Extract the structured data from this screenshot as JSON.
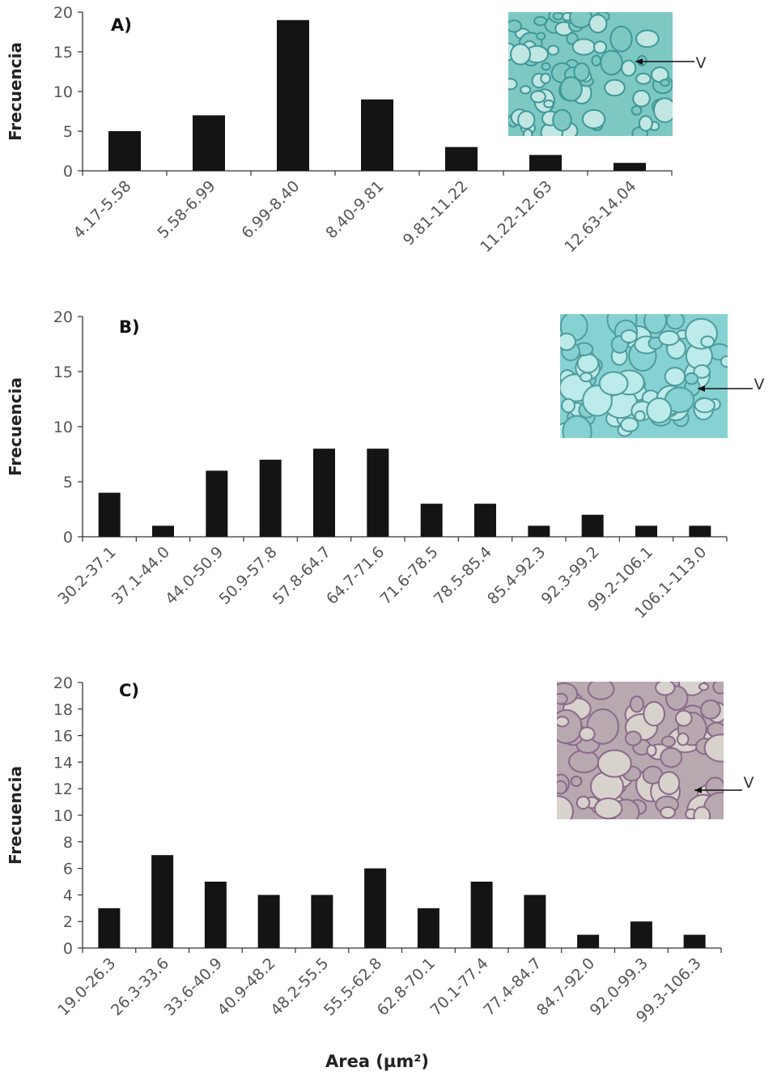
{
  "colors": {
    "bar": "#141414",
    "axis": "#333333",
    "text": "#555555"
  },
  "xlabel": "Area (µm²)",
  "chart_data": [
    {
      "type": "bar",
      "panel": "A)",
      "ylabel": "Frecuencia",
      "ylim": [
        0,
        20
      ],
      "yticks": [
        "0",
        "5",
        "10",
        "15",
        "20"
      ],
      "categories": [
        "4.17-5.58",
        "5.58-6.99",
        "6.99-8.40",
        "8.40-9.81",
        "9.81-11.22",
        "11.22-12.63",
        "12.63-14.04"
      ],
      "values": [
        5,
        7,
        19,
        9,
        3,
        2,
        1
      ],
      "inset": {
        "label": "V",
        "icon": "micrograph-teal",
        "colors": [
          "#3e9898",
          "#7ec8c4",
          "#c2e6e2"
        ]
      }
    },
    {
      "type": "bar",
      "panel": "B)",
      "ylabel": "Frecuencia",
      "ylim": [
        0,
        20
      ],
      "yticks": [
        "0",
        "5",
        "10",
        "15",
        "20"
      ],
      "categories": [
        "30.2-37.1",
        "37.1-44.0",
        "44.0-50.9",
        "50.9-57.8",
        "57.8-64.7",
        "64.7-71.6",
        "71.6-78.5",
        "78.5-85.4",
        "85.4-92.3",
        "92.3-99.2",
        "99.2-106.1",
        "106.1-113.0"
      ],
      "values": [
        4,
        1,
        6,
        7,
        8,
        8,
        3,
        3,
        1,
        2,
        1,
        1
      ],
      "inset": {
        "label": "V",
        "icon": "micrograph-cyan",
        "colors": [
          "#4f9c9c",
          "#86d2d2",
          "#bdeaea"
        ]
      }
    },
    {
      "type": "bar",
      "panel": "C)",
      "ylabel": "Frecuencia",
      "ylim": [
        0,
        20
      ],
      "yticks": [
        "0",
        "2",
        "4",
        "6",
        "8",
        "10",
        "12",
        "14",
        "16",
        "18",
        "20"
      ],
      "categories": [
        "19.0-26.3",
        "26.3-33.6",
        "33.6-40.9",
        "40.9-48.2",
        "48.2-55.5",
        "55.5-62.8",
        "62.8-70.1",
        "70.1-77.4",
        "77.4-84.7",
        "84.7-92.0",
        "92.0-99.3",
        "99.3-106.3"
      ],
      "values": [
        3,
        7,
        5,
        4,
        4,
        6,
        3,
        5,
        4,
        1,
        2,
        1
      ],
      "inset": {
        "label": "V",
        "icon": "micrograph-purple",
        "colors": [
          "#8a6a8a",
          "#b8a8b0",
          "#d8d2cc"
        ]
      }
    }
  ]
}
